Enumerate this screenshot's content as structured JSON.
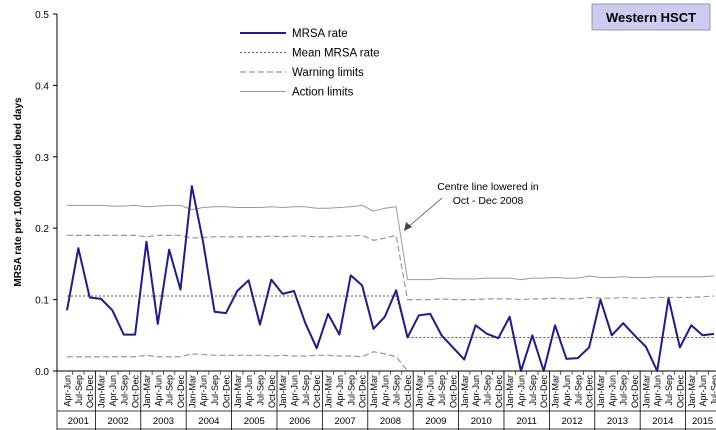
{
  "chart_data": {
    "type": "line",
    "title": "Western HSCT",
    "y_label": "MRSA rate per 1,000 occupied bed days",
    "annotation": [
      "Centre line lowered in",
      "Oct - Dec 2008"
    ],
    "category_groups": [
      {
        "label": "2001",
        "categories": [
          "Apr-Jun",
          "Jul-Sep",
          "Oct-Dec"
        ]
      },
      {
        "label": "2002",
        "categories": [
          "Jan-Mar",
          "Apr-Jun",
          "Jul-Sep",
          "Oct-Dec"
        ]
      },
      {
        "label": "2003",
        "categories": [
          "Jan-Mar",
          "Apr-Jun",
          "Jul-Sep",
          "Oct-Dec"
        ]
      },
      {
        "label": "2004",
        "categories": [
          "Jan-Mar",
          "Apr-Jun",
          "Jul-Sep",
          "Oct-Dec"
        ]
      },
      {
        "label": "2005",
        "categories": [
          "Jan-Mar",
          "Apr-Jun",
          "Jul-Sep",
          "Oct-Dec"
        ]
      },
      {
        "label": "2006",
        "categories": [
          "Jan-Mar",
          "Apr-Jun",
          "Jul-Sep",
          "Oct-Dec"
        ]
      },
      {
        "label": "2007",
        "categories": [
          "Jan-Mar",
          "Apr-Jun",
          "Jul-Sep",
          "Oct-Dec"
        ]
      },
      {
        "label": "2008",
        "categories": [
          "Jan-Mar",
          "Apr-Jun",
          "Jul-Sep",
          "Oct-Dec"
        ]
      },
      {
        "label": "2009",
        "categories": [
          "Jan-Mar",
          "Apr-Jun",
          "Jul-Sep",
          "Oct-Dec"
        ]
      },
      {
        "label": "2010",
        "categories": [
          "Jan-Mar",
          "Apr-Jun",
          "Jul-Sep",
          "Oct-Dec"
        ]
      },
      {
        "label": "2011",
        "categories": [
          "Jan-Mar",
          "Apr-Jun",
          "Jul-Sep",
          "Oct-Dec"
        ]
      },
      {
        "label": "2012",
        "categories": [
          "Jan-Mar",
          "Apr-Jun",
          "Jul-Sep",
          "Oct-Dec"
        ]
      },
      {
        "label": "2013",
        "categories": [
          "Jan-Mar",
          "Apr-Jun",
          "Jul-Sep",
          "Oct-Dec"
        ]
      },
      {
        "label": "2014",
        "categories": [
          "Jan-Mar",
          "Apr-Jun",
          "Jul-Sep",
          "Oct-Dec"
        ]
      },
      {
        "label": "2015",
        "categories": [
          "Jan-Mar",
          "Apr-Jun",
          "Jul-Sep"
        ]
      }
    ],
    "ylim": [
      0,
      0.5
    ],
    "yticks": [
      {
        "value": 0,
        "label": "0.0"
      },
      0.1,
      0.2,
      0.3,
      0.4,
      0.5
    ],
    "series": [
      {
        "name": "MRSA rate",
        "color": "#1c1c8c",
        "style": "solid",
        "width": 2,
        "values": [
          0.085,
          0.172,
          0.103,
          0.101,
          0.085,
          0.051,
          0.051,
          0.181,
          0.066,
          0.17,
          0.114,
          0.259,
          0.18,
          0.083,
          0.081,
          0.112,
          0.127,
          0.065,
          0.128,
          0.108,
          0.112,
          0.067,
          0.032,
          0.08,
          0.051,
          0.134,
          0.12,
          0.059,
          0.076,
          0.113,
          0.047,
          0.078,
          0.08,
          0.05,
          0.033,
          0.016,
          0.064,
          0.052,
          0.046,
          0.076,
          0,
          0.05,
          0,
          0.064,
          0.017,
          0.018,
          0.033,
          0.1,
          0.05,
          0.067,
          0.05,
          0.034,
          0,
          0.102,
          0.033,
          0.064,
          0.05,
          0.052
        ]
      },
      {
        "name": "Mean MRSA rate",
        "color": "#b03a2e",
        "style": "dotted",
        "width": 1,
        "values": [
          0.105,
          0.105,
          0.105,
          0.105,
          0.105,
          0.105,
          0.105,
          0.105,
          0.105,
          0.105,
          0.105,
          0.105,
          0.105,
          0.105,
          0.105,
          0.105,
          0.105,
          0.105,
          0.105,
          0.105,
          0.105,
          0.105,
          0.105,
          0.105,
          0.105,
          0.105,
          0.105,
          0.105,
          0.105,
          0.105,
          0.047,
          0.047,
          0.047,
          0.047,
          0.047,
          0.047,
          0.047,
          0.047,
          0.047,
          0.047,
          0.047,
          0.047,
          0.047,
          0.047,
          0.047,
          0.047,
          0.047,
          0.047,
          0.047,
          0.047,
          0.047,
          0.047,
          0.047,
          0.047,
          0.047,
          0.047,
          0.047,
          0.047
        ]
      },
      {
        "name": "Warning limits",
        "color": "#999999",
        "style": "dashed",
        "width": 1.2,
        "values": [
          0.19,
          0.19,
          0.19,
          0.19,
          0.19,
          0.19,
          0.19,
          0.188,
          0.19,
          0.19,
          0.19,
          0.186,
          0.187,
          0.188,
          0.188,
          0.188,
          0.188,
          0.188,
          0.189,
          0.188,
          0.189,
          0.189,
          0.188,
          0.188,
          0.189,
          0.189,
          0.19,
          0.183,
          0.186,
          0.19,
          0.1,
          0.1,
          0.1,
          0.101,
          0.1,
          0.1,
          0.1,
          0.101,
          0.101,
          0.101,
          0.1,
          0.101,
          0.101,
          0.102,
          0.101,
          0.101,
          0.103,
          0.102,
          0.102,
          0.103,
          0.102,
          0.102,
          0.103,
          0.103,
          0.103,
          0.103,
          0.104,
          0.105
        ]
      },
      {
        "name": null,
        "color": "#999999",
        "style": "dashed",
        "width": 1.2,
        "values": [
          0.02,
          0.02,
          0.02,
          0.02,
          0.02,
          0.02,
          0.02,
          0.022,
          0.02,
          0.02,
          0.02,
          0.024,
          0.023,
          0.022,
          0.022,
          0.022,
          0.022,
          0.022,
          0.021,
          0.022,
          0.021,
          0.021,
          0.022,
          0.022,
          0.021,
          0.021,
          0.02,
          0.027,
          0.024,
          0.02,
          0,
          null,
          null,
          null,
          null,
          null,
          null,
          null,
          null,
          null,
          null,
          null,
          null,
          null,
          null,
          null,
          null,
          null,
          null,
          null,
          null,
          null,
          null,
          null,
          null,
          null,
          null,
          null
        ]
      },
      {
        "name": "Action limits",
        "color": "#999999",
        "style": "solid",
        "width": 1,
        "values": [
          0.232,
          0.232,
          0.232,
          0.232,
          0.231,
          0.231,
          0.232,
          0.23,
          0.231,
          0.232,
          0.232,
          0.226,
          0.229,
          0.23,
          0.23,
          0.229,
          0.229,
          0.229,
          0.23,
          0.229,
          0.23,
          0.23,
          0.228,
          0.228,
          0.229,
          0.23,
          0.232,
          0.224,
          0.228,
          0.23,
          0.128,
          0.128,
          0.128,
          0.13,
          0.129,
          0.129,
          0.129,
          0.13,
          0.13,
          0.13,
          0.128,
          0.13,
          0.13,
          0.131,
          0.13,
          0.13,
          0.133,
          0.131,
          0.131,
          0.132,
          0.131,
          0.131,
          0.132,
          0.132,
          0.132,
          0.132,
          0.132,
          0.133
        ]
      }
    ]
  }
}
